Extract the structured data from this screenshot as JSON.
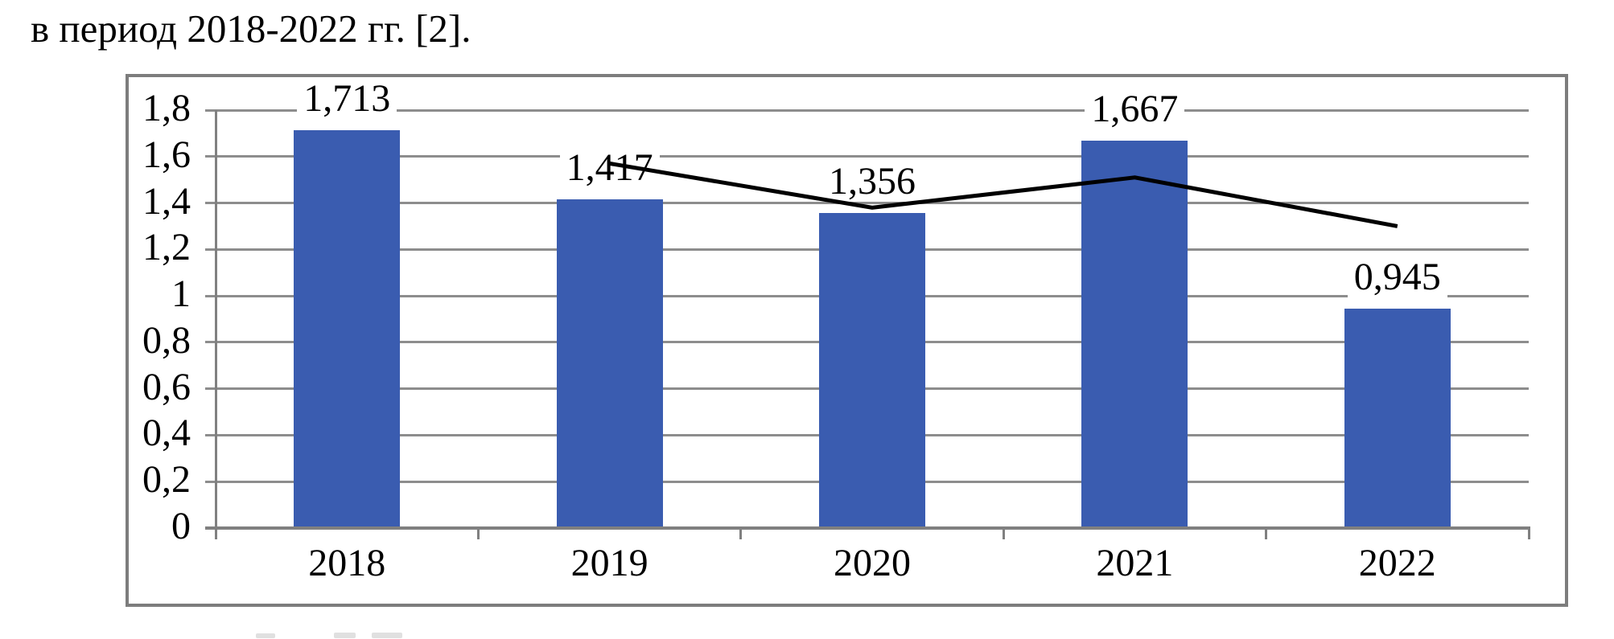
{
  "document": {
    "intro_text": "в период 2018-2022 гг. [2]."
  },
  "chart_data": {
    "type": "bar",
    "subtype": "vertical bars with black line overlay",
    "categories": [
      "2018",
      "2019",
      "2020",
      "2021",
      "2022"
    ],
    "series": [
      {
        "name": "bar-series",
        "type": "bar",
        "color": "#3a5cb0",
        "values": [
          1.713,
          1.417,
          1.356,
          1.667,
          0.945
        ],
        "data_labels": [
          "1,713",
          "1,417",
          "1,356",
          "1,667",
          "0,945"
        ]
      },
      {
        "name": "line-series",
        "type": "line",
        "color": "#000000",
        "values": [
          null,
          1.57,
          1.38,
          1.51,
          1.3
        ],
        "values_estimated": true
      }
    ],
    "title": "",
    "xlabel": "",
    "ylabel": "",
    "ylim": [
      0,
      1.8
    ],
    "y_tick_step": 0.2,
    "y_tick_labels": [
      "0",
      "0,2",
      "0,4",
      "0,6",
      "0,8",
      "1",
      "1,2",
      "1,4",
      "1,6",
      "1,8"
    ],
    "grid": true,
    "legend": false,
    "decimal_separator": ","
  },
  "colors": {
    "bar": "#3a5cb0",
    "line": "#000000",
    "axis": "#808080",
    "gridline": "#8d8d8d",
    "frame_border": "#7d7d7d",
    "text": "#000000",
    "background": "#ffffff"
  }
}
